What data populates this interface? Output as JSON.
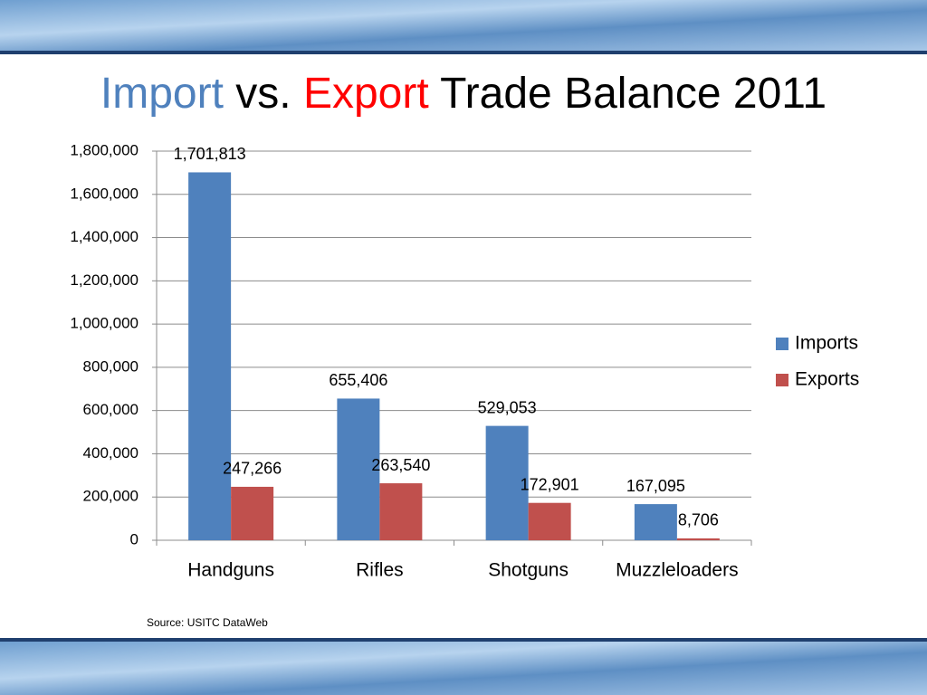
{
  "chart_data": {
    "type": "bar",
    "title_parts": [
      {
        "text": "Import",
        "color": "#4f81bd"
      },
      {
        "text": "vs.",
        "color": "#000000"
      },
      {
        "text": "Export",
        "color": "#ff0000"
      },
      {
        "text": "Trade Balance 2011",
        "color": "#000000"
      }
    ],
    "categories": [
      "Handguns",
      "Rifles",
      "Shotguns",
      "Muzzleloaders"
    ],
    "series": [
      {
        "name": "Imports",
        "color": "#4f81bd",
        "values": [
          1701813,
          655406,
          529053,
          167095
        ],
        "value_labels": [
          "1,701,813",
          "655,406",
          "529,053",
          "167,095"
        ]
      },
      {
        "name": "Exports",
        "color": "#c0504d",
        "values": [
          247266,
          263540,
          172901,
          8706
        ],
        "value_labels": [
          "247,266",
          "263,540",
          "172,901",
          "8,706"
        ]
      }
    ],
    "ylim": [
      0,
      1800000
    ],
    "yticks": [
      0,
      {
        "value": 200000,
        "label": "200,000"
      },
      {
        "value": 400000,
        "label": "400,000"
      },
      {
        "value": 600000,
        "label": "600,000"
      },
      {
        "value": 800000,
        "label": "800,000"
      },
      {
        "value": 1000000,
        "label": "1,000,000"
      },
      {
        "value": 1200000,
        "label": "1,200,000"
      },
      {
        "value": 1400000,
        "label": "1,400,000"
      },
      {
        "value": 1600000,
        "label": "1,600,000"
      },
      {
        "value": 1800000,
        "label": "1,800,000"
      }
    ],
    "grid": true,
    "legend": "right",
    "source": "Source: USITC DataWeb"
  }
}
